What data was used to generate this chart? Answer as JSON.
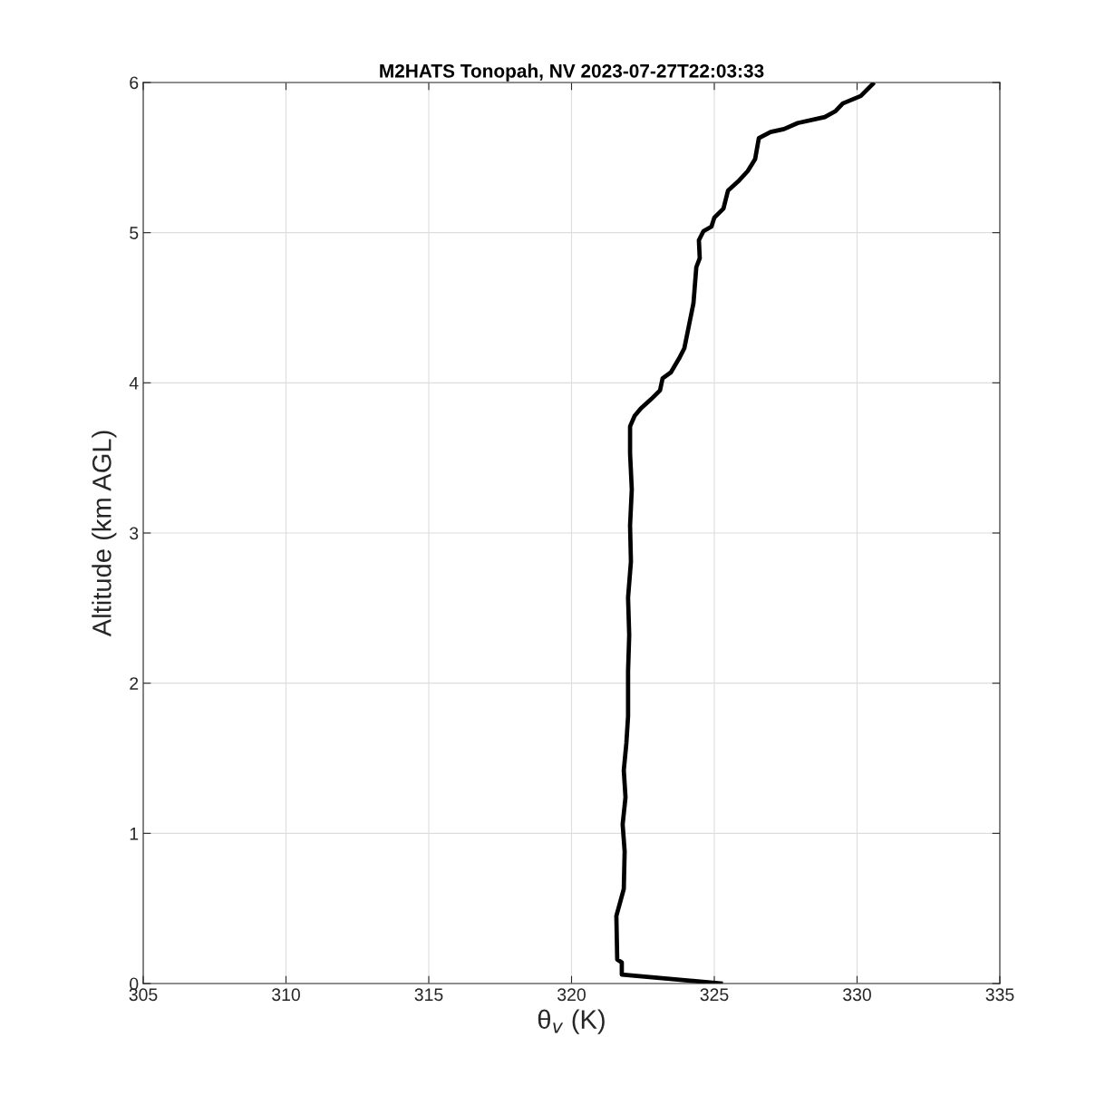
{
  "chart_data": {
    "type": "line",
    "title": "M2HATS Tonopah, NV 2023-07-27T22:03:33",
    "xlabel": "θ$_{v}$ (K)",
    "ylabel": "Altitude (km AGL)",
    "x": [
      325.3,
      321.76,
      321.76,
      321.6,
      321.57,
      321.7,
      321.83,
      321.86,
      321.79,
      321.89,
      321.83,
      321.92,
      321.98,
      321.98,
      322.02,
      321.98,
      322.08,
      322.05,
      322.11,
      322.05,
      322.05,
      322.21,
      322.43,
      322.78,
      323.1,
      323.19,
      323.48,
      323.76,
      323.95,
      324.11,
      324.27,
      324.37,
      324.49,
      324.46,
      324.62,
      324.9,
      325.0,
      325.32,
      325.48,
      325.83,
      326.17,
      326.43,
      326.56,
      326.97,
      327.44,
      327.92,
      328.87,
      329.25,
      329.5,
      330.13,
      330.6
    ],
    "series": [
      {
        "color": "#000000",
        "values": [
          0,
          0.06,
          0.14,
          0.16,
          0.45,
          0.54,
          0.63,
          0.88,
          1.06,
          1.24,
          1.42,
          1.6,
          1.78,
          2.08,
          2.32,
          2.57,
          2.81,
          3.05,
          3.29,
          3.53,
          3.71,
          3.78,
          3.83,
          3.89,
          3.95,
          4.03,
          4.07,
          4.16,
          4.23,
          4.38,
          4.53,
          4.77,
          4.83,
          4.95,
          5.01,
          5.04,
          5.1,
          5.16,
          5.28,
          5.34,
          5.41,
          5.49,
          5.63,
          5.67,
          5.69,
          5.73,
          5.77,
          5.81,
          5.86,
          5.91,
          6.0
        ]
      }
    ],
    "xlim": [
      305,
      335
    ],
    "xticks": [
      305,
      310,
      315,
      320,
      325,
      330,
      335
    ],
    "ylim": [
      0,
      6
    ],
    "yticks": [
      0,
      1,
      2,
      3,
      4,
      5,
      6
    ],
    "grid": true,
    "legend": false,
    "marker": "none",
    "line_style": "solid"
  }
}
